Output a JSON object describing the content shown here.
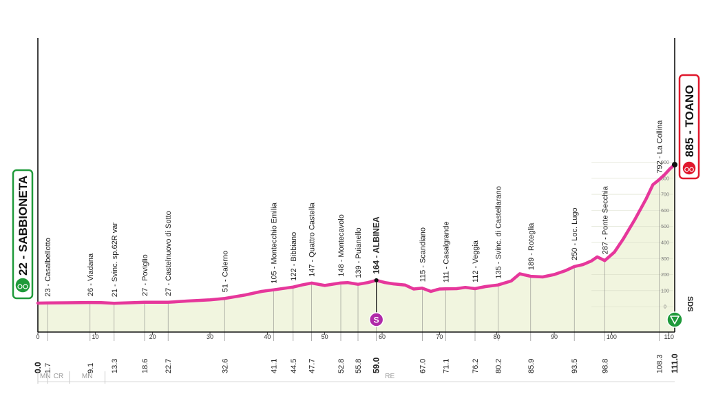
{
  "chart_data": {
    "type": "area",
    "colors": {
      "profile": "#e6379b",
      "fill": "#f1f5df",
      "start": "#1f9a3a",
      "finish": "#e0182d",
      "sprint": "#b02aa8"
    },
    "xlim": [
      0,
      111
    ],
    "ylim": [
      0,
      1000
    ],
    "x_ticks": [
      "0",
      "10",
      "20",
      "30",
      "40",
      "50",
      "60",
      "70",
      "80",
      "90",
      "100",
      "110"
    ],
    "altitude_ticks": [
      "0",
      "100",
      "200",
      "300",
      "400",
      "500",
      "600",
      "700",
      "800",
      "900"
    ],
    "start": {
      "name": "SABBIONETA",
      "label": "22 - SABBIONETA",
      "altitude": 22,
      "km": 0.0,
      "km_label": "0.0"
    },
    "finish": {
      "name": "TOANO",
      "label": "885 - TOANO",
      "altitude": 885,
      "km": 111.0,
      "km_label": "111.0"
    },
    "waypoints": [
      {
        "label": "23 - Casalbellotto",
        "km": 1.7,
        "km_label": "1.7",
        "bold": false
      },
      {
        "label": "26 - Viadana",
        "km": 9.1,
        "km_label": "9.1",
        "bold": false
      },
      {
        "label": "21 - Svinc. sp.62R var",
        "km": 13.3,
        "km_label": "13.3",
        "bold": false
      },
      {
        "label": "27 - Poviglio",
        "km": 18.6,
        "km_label": "18.6",
        "bold": false
      },
      {
        "label": "27 - Castelnuovo di Sotto",
        "km": 22.7,
        "km_label": "22.7",
        "bold": false
      },
      {
        "label": "51 - Calerno",
        "km": 32.6,
        "km_label": "32.6",
        "bold": false
      },
      {
        "label": "105 - Montecchio Emilia",
        "km": 41.1,
        "km_label": "41.1",
        "bold": false
      },
      {
        "label": "122 - Bibbiano",
        "km": 44.5,
        "km_label": "44.5",
        "bold": false
      },
      {
        "label": "147 - Quattro Castella",
        "km": 47.7,
        "km_label": "47.7",
        "bold": false
      },
      {
        "label": "148 - Montecavolo",
        "km": 52.8,
        "km_label": "52.8",
        "bold": false
      },
      {
        "label": "139 - Puianello",
        "km": 55.8,
        "km_label": "55.8",
        "bold": false
      },
      {
        "label": "164 - ALBINEA",
        "km": 59.0,
        "km_label": "59.0",
        "bold": true
      },
      {
        "label": "115 - Scandiano",
        "km": 67.0,
        "km_label": "67.0",
        "bold": false
      },
      {
        "label": "111 - Casalgrande",
        "km": 71.1,
        "km_label": "71.1",
        "bold": false
      },
      {
        "label": "112 - Veggia",
        "km": 76.2,
        "km_label": "76.2",
        "bold": false
      },
      {
        "label": "135 - Svinc. di Castellarano",
        "km": 80.2,
        "km_label": "80.2",
        "bold": false
      },
      {
        "label": "189 - Roteglia",
        "km": 85.9,
        "km_label": "85.9",
        "bold": false
      },
      {
        "label": "250 - Loc. Lugo",
        "km": 93.5,
        "km_label": "93.5",
        "bold": false
      },
      {
        "label": "287 - Ponte Secchia",
        "km": 98.8,
        "km_label": "98.8",
        "bold": false
      },
      {
        "label": "792 - La Collina",
        "km": 108.3,
        "km_label": "108.3",
        "bold": false
      }
    ],
    "profile": [
      [
        0,
        22
      ],
      [
        1.7,
        23
      ],
      [
        5,
        24
      ],
      [
        9.1,
        26
      ],
      [
        11,
        25
      ],
      [
        13.3,
        21
      ],
      [
        16,
        24
      ],
      [
        18.6,
        27
      ],
      [
        22.7,
        27
      ],
      [
        26,
        35
      ],
      [
        30,
        42
      ],
      [
        32.6,
        51
      ],
      [
        36,
        72
      ],
      [
        39,
        95
      ],
      [
        41.1,
        105
      ],
      [
        44.5,
        122
      ],
      [
        46,
        135
      ],
      [
        47.7,
        147
      ],
      [
        50,
        132
      ],
      [
        52.8,
        148
      ],
      [
        54,
        150
      ],
      [
        55.8,
        139
      ],
      [
        57.5,
        150
      ],
      [
        59.0,
        164
      ],
      [
        60.5,
        150
      ],
      [
        62,
        142
      ],
      [
        64,
        135
      ],
      [
        65.5,
        110
      ],
      [
        67.0,
        115
      ],
      [
        68.5,
        95
      ],
      [
        70,
        110
      ],
      [
        71.1,
        111
      ],
      [
        73,
        112
      ],
      [
        74.5,
        120
      ],
      [
        76.2,
        112
      ],
      [
        78,
        125
      ],
      [
        80.2,
        135
      ],
      [
        82.5,
        160
      ],
      [
        84,
        205
      ],
      [
        85.9,
        189
      ],
      [
        88,
        185
      ],
      [
        90,
        200
      ],
      [
        92,
        225
      ],
      [
        93.5,
        250
      ],
      [
        95,
        262
      ],
      [
        96.5,
        285
      ],
      [
        97.5,
        310
      ],
      [
        98.8,
        287
      ],
      [
        100.5,
        340
      ],
      [
        102,
        420
      ],
      [
        104,
        540
      ],
      [
        106,
        670
      ],
      [
        107.2,
        760
      ],
      [
        108.3,
        792
      ],
      [
        109.3,
        825
      ],
      [
        110.2,
        860
      ],
      [
        111,
        885
      ]
    ],
    "sprint": {
      "km": 59.0,
      "symbol": "S"
    },
    "zones": [
      {
        "label": "MN",
        "from": 0,
        "to": 1.7
      },
      {
        "label": "CR",
        "from": 1.7,
        "to": 5.5
      },
      {
        "label": "MN",
        "from": 5.5,
        "to": 11.7
      },
      {
        "label": "RE",
        "from": 11.7,
        "to": 111
      }
    ],
    "finish_note": "SDS"
  }
}
